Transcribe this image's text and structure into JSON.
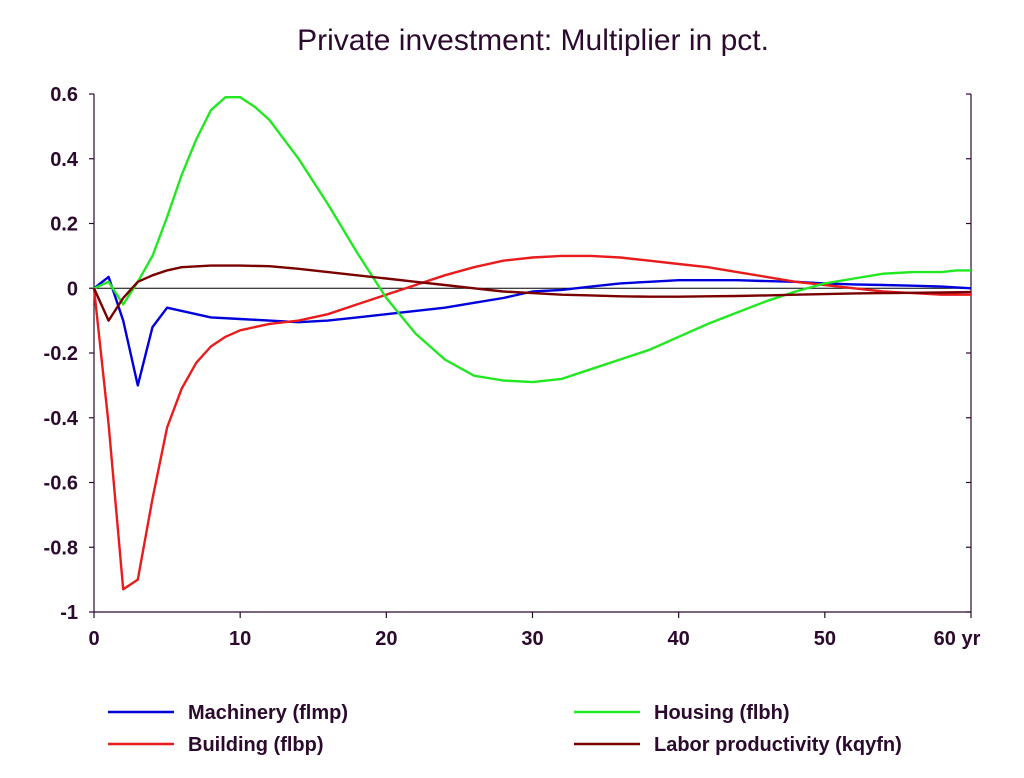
{
  "chart_data": {
    "type": "line",
    "title": "Private investment: Multiplier in pct.",
    "xlabel": "",
    "ylabel": "",
    "x_unit_label": "yr",
    "xlim": [
      0,
      60
    ],
    "ylim": [
      -1,
      0.6
    ],
    "x_ticks": [
      0,
      10,
      20,
      30,
      40,
      50,
      60
    ],
    "x_tick_labels": [
      "0",
      "10",
      "20",
      "30",
      "40",
      "50",
      "60 yr"
    ],
    "y_ticks": [
      0.6,
      0.4,
      0.2,
      0,
      -0.2,
      -0.4,
      -0.6,
      -0.8,
      -1
    ],
    "y_tick_labels": [
      "0.6",
      "0.4",
      "0.2",
      "0",
      "-0.2",
      "-0.4",
      "-0.6",
      "-0.8",
      "-1"
    ],
    "grid": false,
    "zero_line": true,
    "legend_position": "bottom",
    "series": [
      {
        "name": "Machinery (flmp)",
        "color": "#0000dd",
        "points": [
          [
            0,
            0
          ],
          [
            1,
            0.035
          ],
          [
            2,
            -0.1
          ],
          [
            3,
            -0.3
          ],
          [
            4,
            -0.12
          ],
          [
            5,
            -0.06
          ],
          [
            6,
            -0.07
          ],
          [
            8,
            -0.09
          ],
          [
            10,
            -0.095
          ],
          [
            12,
            -0.1
          ],
          [
            14,
            -0.105
          ],
          [
            16,
            -0.1
          ],
          [
            18,
            -0.09
          ],
          [
            20,
            -0.08
          ],
          [
            22,
            -0.07
          ],
          [
            24,
            -0.06
          ],
          [
            26,
            -0.045
          ],
          [
            28,
            -0.03
          ],
          [
            30,
            -0.01
          ],
          [
            32,
            -0.005
          ],
          [
            34,
            0.005
          ],
          [
            36,
            0.015
          ],
          [
            38,
            0.02
          ],
          [
            40,
            0.025
          ],
          [
            42,
            0.025
          ],
          [
            44,
            0.025
          ],
          [
            46,
            0.022
          ],
          [
            48,
            0.02
          ],
          [
            50,
            0.015
          ],
          [
            52,
            0.012
          ],
          [
            54,
            0.01
          ],
          [
            56,
            0.008
          ],
          [
            58,
            0.005
          ],
          [
            60,
            0
          ]
        ]
      },
      {
        "name": "Building (flbp)",
        "color": "#e81c1c",
        "points": [
          [
            0,
            0
          ],
          [
            1,
            -0.42
          ],
          [
            2,
            -0.93
          ],
          [
            3,
            -0.9
          ],
          [
            4,
            -0.65
          ],
          [
            5,
            -0.43
          ],
          [
            6,
            -0.31
          ],
          [
            7,
            -0.23
          ],
          [
            8,
            -0.18
          ],
          [
            9,
            -0.15
          ],
          [
            10,
            -0.13
          ],
          [
            12,
            -0.11
          ],
          [
            14,
            -0.1
          ],
          [
            16,
            -0.08
          ],
          [
            18,
            -0.05
          ],
          [
            20,
            -0.02
          ],
          [
            22,
            0.01
          ],
          [
            24,
            0.04
          ],
          [
            26,
            0.065
          ],
          [
            28,
            0.085
          ],
          [
            30,
            0.095
          ],
          [
            32,
            0.1
          ],
          [
            34,
            0.1
          ],
          [
            36,
            0.095
          ],
          [
            38,
            0.085
          ],
          [
            40,
            0.075
          ],
          [
            42,
            0.065
          ],
          [
            44,
            0.05
          ],
          [
            46,
            0.035
          ],
          [
            48,
            0.02
          ],
          [
            50,
            0.01
          ],
          [
            52,
            0
          ],
          [
            54,
            -0.01
          ],
          [
            56,
            -0.015
          ],
          [
            58,
            -0.02
          ],
          [
            60,
            -0.02
          ]
        ]
      },
      {
        "name": "Housing (flbh)",
        "color": "#22e822",
        "points": [
          [
            0,
            0
          ],
          [
            1,
            0.02
          ],
          [
            2,
            -0.05
          ],
          [
            3,
            0.02
          ],
          [
            4,
            0.1
          ],
          [
            5,
            0.22
          ],
          [
            6,
            0.35
          ],
          [
            7,
            0.46
          ],
          [
            8,
            0.55
          ],
          [
            9,
            0.59
          ],
          [
            10,
            0.59
          ],
          [
            11,
            0.56
          ],
          [
            12,
            0.52
          ],
          [
            14,
            0.4
          ],
          [
            16,
            0.26
          ],
          [
            18,
            0.11
          ],
          [
            20,
            -0.03
          ],
          [
            22,
            -0.14
          ],
          [
            24,
            -0.22
          ],
          [
            26,
            -0.27
          ],
          [
            28,
            -0.285
          ],
          [
            30,
            -0.29
          ],
          [
            32,
            -0.28
          ],
          [
            34,
            -0.25
          ],
          [
            36,
            -0.22
          ],
          [
            38,
            -0.19
          ],
          [
            40,
            -0.15
          ],
          [
            42,
            -0.11
          ],
          [
            44,
            -0.075
          ],
          [
            46,
            -0.04
          ],
          [
            48,
            -0.01
          ],
          [
            50,
            0.015
          ],
          [
            52,
            0.03
          ],
          [
            54,
            0.045
          ],
          [
            56,
            0.05
          ],
          [
            58,
            0.05
          ],
          [
            59,
            0.055
          ],
          [
            60,
            0.055
          ]
        ]
      },
      {
        "name": "Labor productivity (kqyfn)",
        "color": "#7a0000",
        "points": [
          [
            0,
            0
          ],
          [
            1,
            -0.1
          ],
          [
            2,
            -0.03
          ],
          [
            3,
            0.02
          ],
          [
            4,
            0.04
          ],
          [
            5,
            0.055
          ],
          [
            6,
            0.065
          ],
          [
            8,
            0.07
          ],
          [
            10,
            0.07
          ],
          [
            12,
            0.068
          ],
          [
            14,
            0.06
          ],
          [
            16,
            0.05
          ],
          [
            18,
            0.04
          ],
          [
            20,
            0.03
          ],
          [
            22,
            0.02
          ],
          [
            24,
            0.01
          ],
          [
            26,
            0
          ],
          [
            28,
            -0.01
          ],
          [
            30,
            -0.015
          ],
          [
            32,
            -0.02
          ],
          [
            34,
            -0.022
          ],
          [
            36,
            -0.025
          ],
          [
            38,
            -0.026
          ],
          [
            40,
            -0.026
          ],
          [
            42,
            -0.025
          ],
          [
            44,
            -0.024
          ],
          [
            46,
            -0.022
          ],
          [
            48,
            -0.02
          ],
          [
            50,
            -0.018
          ],
          [
            52,
            -0.016
          ],
          [
            54,
            -0.015
          ],
          [
            56,
            -0.014
          ],
          [
            58,
            -0.013
          ],
          [
            60,
            -0.012
          ]
        ]
      }
    ]
  }
}
